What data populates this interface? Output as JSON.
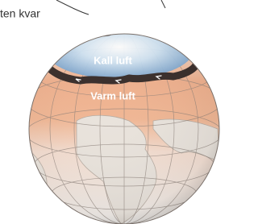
{
  "labels": {
    "top_left": "ten kvar",
    "cold": "Kall luft",
    "warm": "Varm luft"
  }
}
